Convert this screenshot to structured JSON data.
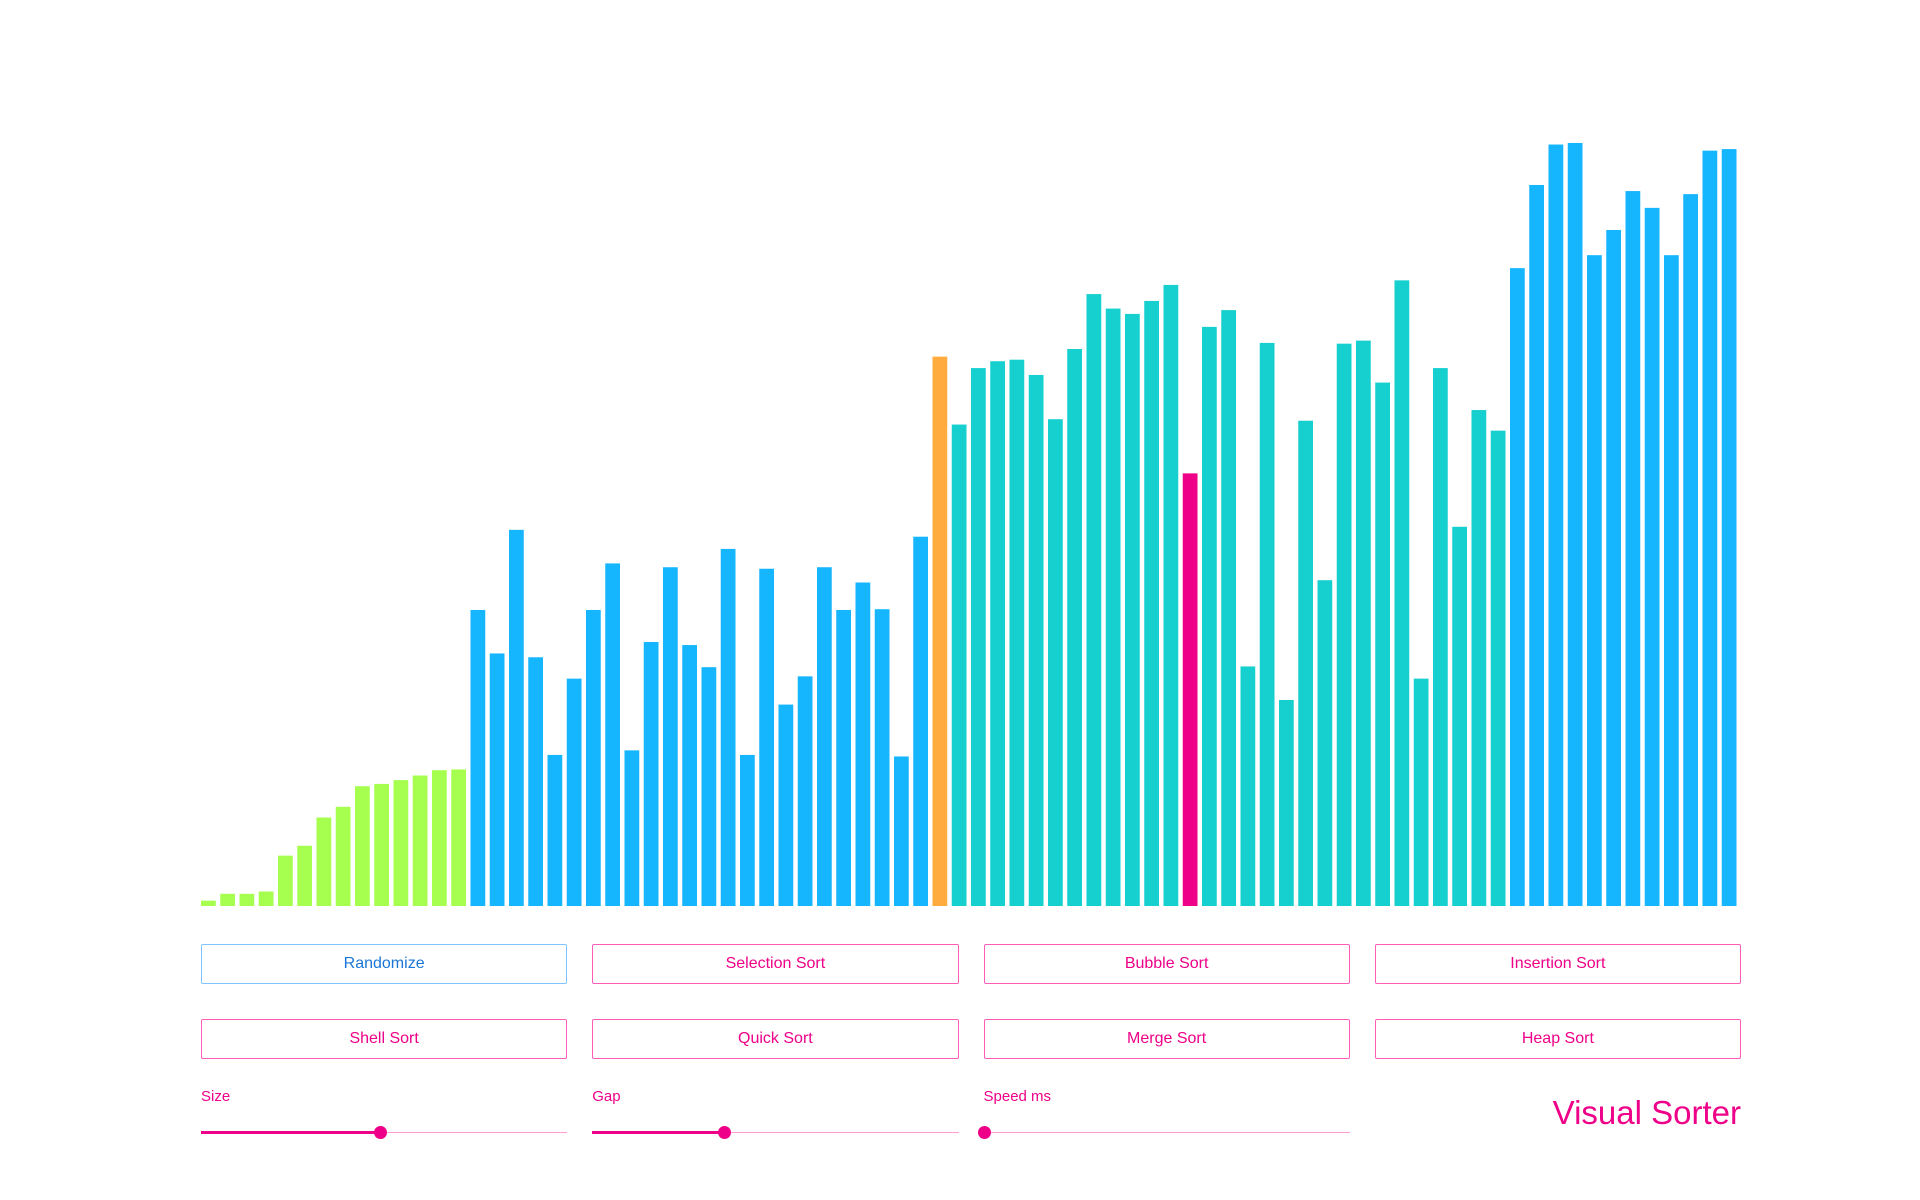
{
  "app": {
    "title": "Visual Sorter"
  },
  "colors": {
    "sorted": "#a6ff4f",
    "unsorted": "#16b6ff",
    "active": "#16cfcf",
    "pivot": "#ffab3d",
    "compare": "#ee0088",
    "accent": "#ee0088",
    "accent_light": "#ff5cb8"
  },
  "buttons": {
    "randomize": "Randomize",
    "selection": "Selection Sort",
    "bubble": "Bubble Sort",
    "insertion": "Insertion Sort",
    "shell": "Shell Sort",
    "quick": "Quick Sort",
    "merge": "Merge Sort",
    "heap": "Heap Sort"
  },
  "controls": {
    "size": {
      "label": "Size",
      "fraction": 0.49
    },
    "gap": {
      "label": "Gap",
      "fraction": 0.36
    },
    "speed": {
      "label": "Speed ms",
      "fraction": 0.0
    }
  },
  "chart_data": {
    "type": "bar",
    "ymax": 100,
    "values": [
      0.7,
      1.6,
      1.6,
      1.9,
      6.6,
      7.9,
      11.6,
      13.0,
      15.7,
      16.0,
      16.5,
      17.1,
      17.8,
      17.9,
      38.8,
      33.1,
      49.3,
      32.6,
      19.8,
      29.8,
      38.8,
      44.9,
      20.4,
      34.6,
      44.4,
      34.2,
      31.3,
      46.8,
      19.8,
      44.2,
      26.4,
      30.1,
      44.4,
      38.8,
      42.4,
      38.9,
      19.6,
      48.4,
      72.0,
      63.1,
      70.5,
      71.4,
      71.6,
      69.6,
      63.8,
      73.0,
      80.2,
      78.3,
      77.6,
      79.3,
      81.4,
      56.7,
      75.9,
      78.1,
      31.4,
      73.8,
      27.0,
      63.6,
      42.7,
      73.7,
      74.1,
      68.6,
      82.0,
      29.8,
      70.5,
      49.7,
      65.0,
      62.3,
      83.6,
      94.5,
      99.8,
      100.0,
      85.3,
      88.6,
      93.7,
      91.5,
      85.3,
      93.3,
      99.0,
      99.2
    ],
    "states": [
      "sorted",
      "sorted",
      "sorted",
      "sorted",
      "sorted",
      "sorted",
      "sorted",
      "sorted",
      "sorted",
      "sorted",
      "sorted",
      "sorted",
      "sorted",
      "sorted",
      "unsorted",
      "unsorted",
      "unsorted",
      "unsorted",
      "unsorted",
      "unsorted",
      "unsorted",
      "unsorted",
      "unsorted",
      "unsorted",
      "unsorted",
      "unsorted",
      "unsorted",
      "unsorted",
      "unsorted",
      "unsorted",
      "unsorted",
      "unsorted",
      "unsorted",
      "unsorted",
      "unsorted",
      "unsorted",
      "unsorted",
      "unsorted",
      "pivot",
      "active",
      "active",
      "active",
      "active",
      "active",
      "active",
      "active",
      "active",
      "active",
      "active",
      "active",
      "active",
      "compare",
      "active",
      "active",
      "active",
      "active",
      "active",
      "active",
      "active",
      "active",
      "active",
      "active",
      "active",
      "active",
      "active",
      "active",
      "active",
      "active",
      "unsorted",
      "unsorted",
      "unsorted",
      "unsorted",
      "unsorted",
      "unsorted",
      "unsorted",
      "unsorted",
      "unsorted",
      "unsorted",
      "unsorted",
      "unsorted"
    ]
  }
}
